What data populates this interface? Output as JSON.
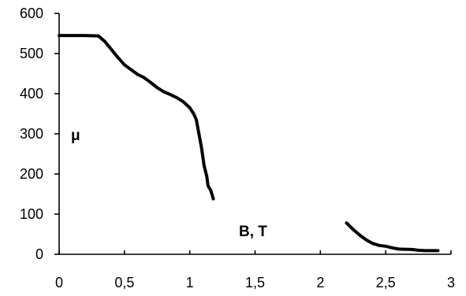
{
  "chart_data": {
    "type": "line",
    "title": "",
    "xlabel": "B, T",
    "ylabel": "μ",
    "xlim": [
      0,
      3
    ],
    "ylim": [
      0,
      600
    ],
    "x_ticks": [
      "0",
      "0,5",
      "1",
      "1,5",
      "2",
      "2,5",
      "3"
    ],
    "y_ticks": [
      "0",
      "100",
      "200",
      "300",
      "400",
      "500",
      "600"
    ],
    "legend": "none",
    "grid": false,
    "series": [
      {
        "color": "#000000",
        "points": [
          [
            0,
            545
          ],
          [
            0.1,
            545
          ],
          [
            0.2,
            545
          ],
          [
            0.3,
            544
          ],
          [
            0.35,
            530
          ],
          [
            0.4,
            510
          ],
          [
            0.45,
            490
          ],
          [
            0.5,
            472
          ],
          [
            0.55,
            460
          ],
          [
            0.6,
            448
          ],
          [
            0.65,
            440
          ],
          [
            0.7,
            428
          ],
          [
            0.75,
            415
          ],
          [
            0.8,
            405
          ],
          [
            0.85,
            398
          ],
          [
            0.9,
            390
          ],
          [
            0.95,
            380
          ],
          [
            1.0,
            365
          ],
          [
            1.03,
            350
          ],
          [
            1.05,
            335
          ],
          [
            1.07,
            300
          ],
          [
            1.09,
            265
          ],
          [
            1.11,
            220
          ],
          [
            1.13,
            195
          ],
          [
            1.14,
            170
          ],
          [
            1.16,
            160
          ],
          [
            1.18,
            138
          ]
        ]
      },
      {
        "color": "#000000",
        "points": [
          [
            2.2,
            78
          ],
          [
            2.25,
            62
          ],
          [
            2.3,
            48
          ],
          [
            2.35,
            36
          ],
          [
            2.4,
            27
          ],
          [
            2.45,
            22
          ],
          [
            2.5,
            20
          ],
          [
            2.55,
            16
          ],
          [
            2.6,
            13
          ],
          [
            2.7,
            12
          ],
          [
            2.75,
            10
          ],
          [
            2.8,
            9
          ],
          [
            2.9,
            9
          ]
        ]
      }
    ]
  }
}
